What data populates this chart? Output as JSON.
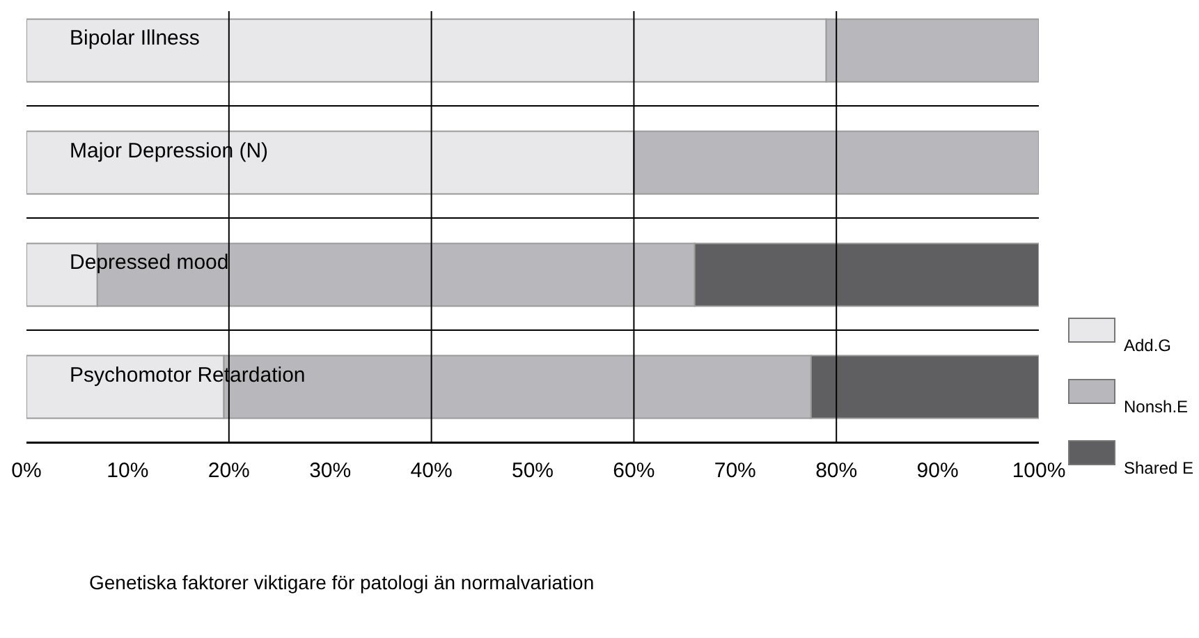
{
  "chart_data": {
    "type": "bar",
    "orientation": "horizontal",
    "stacked": true,
    "categories": [
      "Bipolar Illness",
      "Major Depression (N)",
      "Depressed mood",
      "Psychomotor Retardation"
    ],
    "series": [
      {
        "name": "Add.G",
        "color": "#e8e8ea",
        "values": [
          79,
          60,
          7,
          19.5
        ]
      },
      {
        "name": "Nonsh.E",
        "color": "#b8b8bc",
        "values": [
          21,
          40,
          59,
          58
        ]
      },
      {
        "name": "Shared E",
        "color": "#5f5f61",
        "values": [
          0,
          0,
          34,
          22.5
        ]
      }
    ],
    "xlim": [
      0,
      100
    ],
    "xticks": [
      {
        "value": 0,
        "label": "0%"
      },
      {
        "value": 10,
        "label": "10%"
      },
      {
        "value": 20,
        "label": "20%"
      },
      {
        "value": 30,
        "label": "30%"
      },
      {
        "value": 40,
        "label": "40%"
      },
      {
        "value": 50,
        "label": "50%"
      },
      {
        "value": 60,
        "label": "60%"
      },
      {
        "value": 70,
        "label": "70%"
      },
      {
        "value": 80,
        "label": "80%"
      },
      {
        "value": 90,
        "label": "90%"
      },
      {
        "value": 100,
        "label": "100%"
      }
    ],
    "ref_lines": [
      {
        "axis": "x",
        "value": 20,
        "color": "#000000"
      },
      {
        "axis": "x",
        "value": 40,
        "color": "#000000"
      },
      {
        "axis": "x",
        "value": 60,
        "color": "#000000"
      },
      {
        "axis": "x",
        "value": 80,
        "color": "#000000"
      }
    ],
    "legend": "right",
    "annotations": [
      "Genetiska faktorer viktigare för patologi än normalvariation"
    ]
  }
}
